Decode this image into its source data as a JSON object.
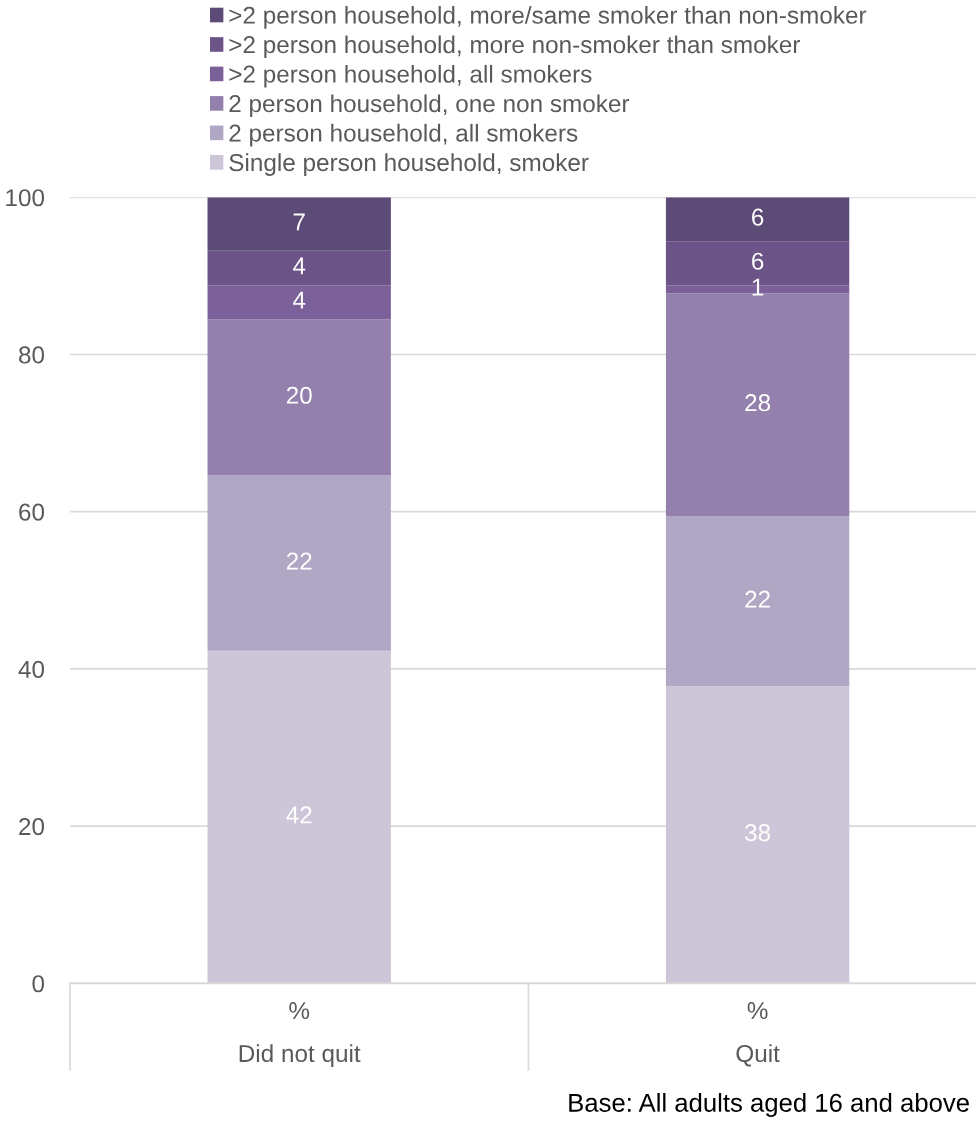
{
  "chart_data": {
    "type": "bar",
    "stacked": true,
    "categories": [
      "%\nDid not quit",
      "%\nQuit"
    ],
    "series": [
      {
        "name": "Single person household, smoker",
        "color": "#cdc6d8",
        "values": [
          42.3,
          37.8
        ],
        "value_labels": [
          "42",
          "38"
        ]
      },
      {
        "name": "2 person household, all smokers",
        "color": "#b0a7c4",
        "values": [
          22.3,
          21.6
        ],
        "value_labels": [
          "22",
          "22"
        ]
      },
      {
        "name": "2 person household, one non smoker",
        "color": "#9380ad",
        "values": [
          19.9,
          28.4
        ],
        "value_labels": [
          "20",
          "28"
        ]
      },
      {
        "name": ">2 person household, all smokers",
        "color": "#7c6099",
        "values": [
          4.3,
          1.0
        ],
        "value_labels": [
          "4",
          "1"
        ]
      },
      {
        "name": ">2 person household, more non-smoker than smoker",
        "color": "#6c5488",
        "values": [
          4.4,
          5.6
        ],
        "value_labels": [
          "4",
          "6"
        ]
      },
      {
        "name": ">2 person household, more/same smoker than non-smoker",
        "color": "#5c4a77",
        "values": [
          6.8,
          5.6
        ],
        "value_labels": [
          "7",
          "6"
        ]
      }
    ],
    "ylim": [
      0,
      100
    ],
    "yticks": [
      0,
      20,
      40,
      60,
      80,
      100
    ],
    "grid": "y",
    "legend": "top",
    "annotations": [
      "Base: All adults aged 16 and above"
    ]
  }
}
